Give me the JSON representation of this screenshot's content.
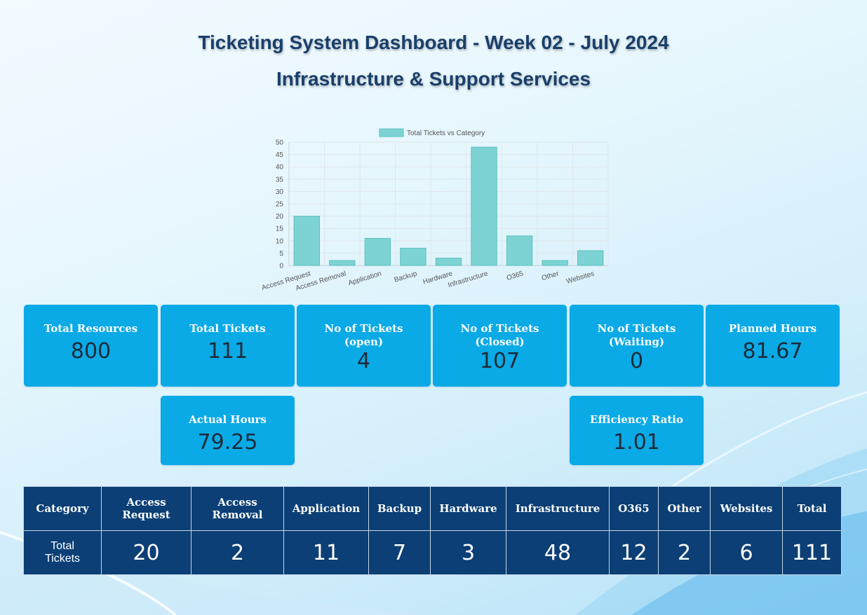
{
  "header": {
    "title": "Ticketing System Dashboard - Week 02 - July 2024",
    "subtitle": "Infrastructure & Support Services"
  },
  "chart_data": {
    "type": "bar",
    "legend": "Total Tickets vs Category",
    "legend_position": "top",
    "categories": [
      "Access Request",
      "Access Removal",
      "Application",
      "Backup",
      "Hardware",
      "Infrastructure",
      "O365",
      "Other",
      "Websites"
    ],
    "values": [
      20,
      2,
      11,
      7,
      3,
      48,
      12,
      2,
      6
    ],
    "ylim": [
      0,
      50
    ],
    "yticks": [
      0,
      5,
      10,
      15,
      20,
      25,
      30,
      35,
      40,
      45,
      50
    ],
    "grid": true,
    "colors": {
      "fill": "#7dd3d3",
      "stroke": "#5cc0c0"
    }
  },
  "cards": [
    {
      "label": "Total Resources",
      "value": "800"
    },
    {
      "label": "Total Tickets",
      "value": "111"
    },
    {
      "label": "No of Tickets\n(open)",
      "value": "4"
    },
    {
      "label": "No of Tickets\n(Closed)",
      "value": "107"
    },
    {
      "label": "No of Tickets\n(Waiting)",
      "value": "0"
    },
    {
      "label": "Planned Hours",
      "value": "81.67"
    },
    {
      "label": "Actual Hours",
      "value": "79.25"
    },
    {
      "label": "Efficiency Ratio",
      "value": "1.01"
    }
  ],
  "table": {
    "headers": [
      "Category",
      "Access\nRequest",
      "Access\nRemoval",
      "Application",
      "Backup",
      "Hardware",
      "Infrastructure",
      "O365",
      "Other",
      "Websites",
      "Total"
    ],
    "row_label": "Total\nTickets",
    "values": [
      "20",
      "2",
      "11",
      "7",
      "3",
      "48",
      "12",
      "2",
      "6",
      "111"
    ]
  },
  "colors": {
    "title": "#1a3f6b",
    "card": "#0aaae6",
    "table": "#0b3f75"
  }
}
